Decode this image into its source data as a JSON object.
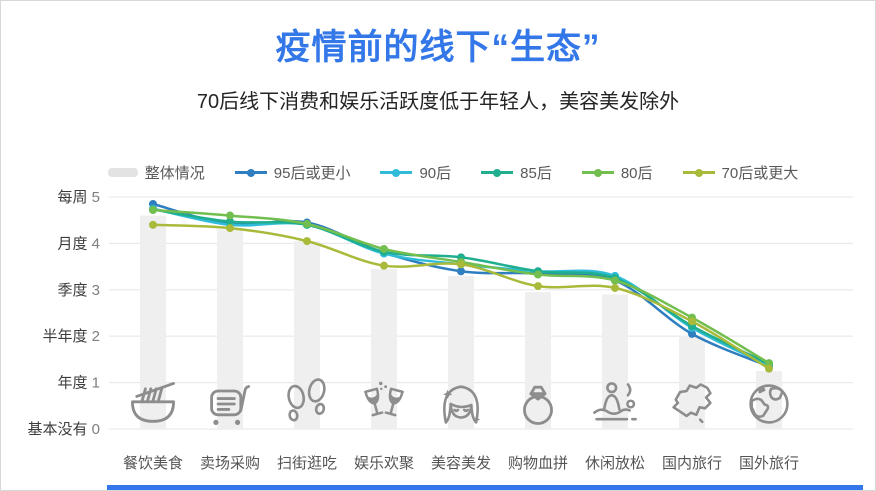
{
  "header": {
    "title": "疫情前的线下“生态”",
    "subtitle": "70后线下消费和娱乐活跃度低于年轻人，美容美发除外",
    "title_color": "#3377E8"
  },
  "chart_data": {
    "type": "line",
    "title": "疫情前的线下“生态”",
    "subtitle": "70后线下消费和娱乐活跃度低于年轻人，美容美发除外",
    "grid": true,
    "legend_position": "top",
    "ylim": [
      0,
      5
    ],
    "y_ticks": [
      {
        "label": "每周",
        "value": 5
      },
      {
        "label": "月度",
        "value": 4
      },
      {
        "label": "季度",
        "value": 3
      },
      {
        "label": "半年度",
        "value": 2
      },
      {
        "label": "年度",
        "value": 1
      },
      {
        "label": "基本没有",
        "value": 0
      }
    ],
    "categories": [
      "餐饮美食",
      "卖场采购",
      "扫街逛吃",
      "娱乐欢聚",
      "美容美发",
      "购物血拼",
      "休闲放松",
      "国内旅行",
      "国外旅行"
    ],
    "category_icons": [
      "noodle-bowl-icon",
      "shopping-cart-icon",
      "footprints-icon",
      "wine-glasses-icon",
      "beauty-face-icon",
      "ring-icon",
      "hot-spring-icon",
      "china-map-icon",
      "globe-icon"
    ],
    "bar_series": {
      "name": "整体情况",
      "color": "#EFEFEF",
      "legend_color": "#E3E3E3",
      "values": [
        4.6,
        4.3,
        4.05,
        3.45,
        3.3,
        2.95,
        2.9,
        2.0,
        1.25
      ]
    },
    "series": [
      {
        "name": "95后或更小",
        "color": "#2E7EC0",
        "values": [
          4.85,
          4.42,
          4.45,
          3.8,
          3.4,
          3.35,
          3.2,
          2.05,
          1.35
        ]
      },
      {
        "name": "90后",
        "color": "#30BCD9",
        "values": [
          4.75,
          4.4,
          4.4,
          3.78,
          3.55,
          3.4,
          3.3,
          2.18,
          1.37
        ]
      },
      {
        "name": "85后",
        "color": "#1FAE8E",
        "values": [
          4.73,
          4.47,
          4.4,
          3.82,
          3.7,
          3.4,
          3.25,
          2.22,
          1.4
        ]
      },
      {
        "name": "80后",
        "color": "#72BE4F",
        "values": [
          4.72,
          4.6,
          4.42,
          3.88,
          3.6,
          3.33,
          3.2,
          2.4,
          1.42
        ]
      },
      {
        "name": "70后或更大",
        "color": "#A9BA3B",
        "values": [
          4.4,
          4.33,
          4.05,
          3.52,
          3.55,
          3.08,
          3.04,
          2.32,
          1.3
        ]
      }
    ],
    "axis_colors": {
      "grid": "#E9E9E9",
      "tick_text": "#3d3d3d",
      "tick_value_text": "#7f7f7f",
      "category_text": "#555555",
      "icon_stroke": "#8d8d8d"
    }
  }
}
